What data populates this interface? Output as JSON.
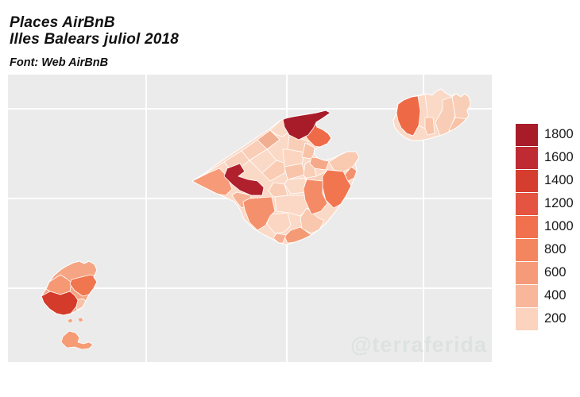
{
  "header": {
    "title_line1": "Places AirBnB",
    "title_line2": "Illes Balears juliol 2018",
    "source": "Font: Web AirBnB"
  },
  "watermark": "@terraferida",
  "colors": {
    "background": "#ffffff",
    "panel": "#ebebeb",
    "gridline": "#ffffff",
    "region_border": "#ffffff",
    "title_text": "#111111",
    "legend_text": "#1a1a1a",
    "watermark_text": "#dce2df"
  },
  "chart_data": {
    "type": "choropleth",
    "title": "Places AirBnB - Illes Balears juliol 2018",
    "source_label": "Font: Web AirBnB",
    "islands": [
      "Mallorca",
      "Menorca",
      "Eivissa",
      "Formentera"
    ],
    "legend": {
      "position": "right",
      "values": [
        1800,
        1600,
        1400,
        1200,
        1000,
        800,
        600,
        400,
        200
      ],
      "colors": [
        "#a81c29",
        "#c02a33",
        "#d53e2e",
        "#e55440",
        "#f1704d",
        "#f4865f",
        "#f69b7a",
        "#f8b69b",
        "#fbd3bf"
      ]
    },
    "regions": {
      "mallorca_base": {
        "island": "Mallorca",
        "approx_value": 150,
        "color": "#fbd9c7"
      },
      "m_andratx": {
        "island": "Mallorca",
        "approx_value": 600,
        "color": "#f69a77"
      },
      "m_nw_coast_1": {
        "island": "Mallorca",
        "approx_value": 150,
        "color": "#fbd8c5"
      },
      "m_nw_coast_2": {
        "island": "Mallorca",
        "approx_value": 250,
        "color": "#f9d0bb"
      },
      "m_nw_coast_3": {
        "island": "Mallorca",
        "approx_value": 250,
        "color": "#f9cdb6"
      },
      "m_soller": {
        "island": "Mallorca",
        "approx_value": 450,
        "color": "#f2ae90"
      },
      "m_escorca": {
        "island": "Mallorca",
        "approx_value": 150,
        "color": "#fbd9c7"
      },
      "m_pollenca": {
        "island": "Mallorca",
        "approx_value": 1750,
        "color": "#a81c29"
      },
      "m_alcudia": {
        "island": "Mallorca",
        "approx_value": 1050,
        "color": "#ef6b48"
      },
      "m_sa_pobla": {
        "island": "Mallorca",
        "approx_value": 250,
        "color": "#f9ceb6"
      },
      "m_muro": {
        "island": "Mallorca",
        "approx_value": 350,
        "color": "#f8c2a6"
      },
      "m_santa_margalida": {
        "island": "Mallorca",
        "approx_value": 500,
        "color": "#f6a988"
      },
      "m_arta": {
        "island": "Mallorca",
        "approx_value": 300,
        "color": "#f9c9b0"
      },
      "m_capdepera": {
        "island": "Mallorca",
        "approx_value": 600,
        "color": "#f4916d"
      },
      "m_east_coast": {
        "island": "Mallorca",
        "approx_value": 950,
        "color": "#f1764f"
      },
      "m_manacor": {
        "island": "Mallorca",
        "approx_value": 800,
        "color": "#f58a66"
      },
      "m_felanitx": {
        "island": "Mallorca",
        "approx_value": 300,
        "color": "#f9c7ad"
      },
      "m_santanyi": {
        "island": "Mallorca",
        "approx_value": 550,
        "color": "#f49a75"
      },
      "m_ses_salines": {
        "island": "Mallorca",
        "approx_value": 450,
        "color": "#f7b093"
      },
      "m_campos": {
        "island": "Mallorca",
        "approx_value": 200,
        "color": "#fbd6c2"
      },
      "m_llucmajor": {
        "island": "Mallorca",
        "approx_value": 650,
        "color": "#f5906c"
      },
      "m_palma": {
        "island": "Mallorca",
        "approx_value": 400,
        "color": "#f7b295"
      },
      "m_calvia": {
        "island": "Mallorca",
        "approx_value": 1650,
        "color": "#b0202d"
      },
      "m_center_1": {
        "island": "Mallorca",
        "approx_value": 150,
        "color": "#fbd9c7"
      },
      "m_center_2": {
        "island": "Mallorca",
        "approx_value": 250,
        "color": "#f9ccb3"
      },
      "m_inca": {
        "island": "Mallorca",
        "approx_value": 200,
        "color": "#fbd5c0"
      },
      "m_center_3": {
        "island": "Mallorca",
        "approx_value": 300,
        "color": "#f8c5aa"
      },
      "m_center_4": {
        "island": "Mallorca",
        "approx_value": 250,
        "color": "#f9ceb6"
      },
      "m_plain_1": {
        "island": "Mallorca",
        "approx_value": 150,
        "color": "#fbd9c7"
      },
      "m_plain_2": {
        "island": "Mallorca",
        "approx_value": 250,
        "color": "#f9cdb5"
      },
      "m_petra": {
        "island": "Mallorca",
        "approx_value": 250,
        "color": "#f9ceb6"
      },
      "m_south_mid": {
        "island": "Mallorca",
        "approx_value": 200,
        "color": "#fbd8c5"
      },
      "me_ciutadella": {
        "island": "Menorca",
        "approx_value": 1000,
        "color": "#ee6946"
      },
      "me_ferreries": {
        "island": "Menorca",
        "approx_value": 200,
        "color": "#fbd7c4"
      },
      "me_es_migjorn": {
        "island": "Menorca",
        "approx_value": 300,
        "color": "#f8c3a8"
      },
      "me_es_mercadal": {
        "island": "Menorca",
        "approx_value": 150,
        "color": "#fbd9c7"
      },
      "me_alaior": {
        "island": "Menorca",
        "approx_value": 250,
        "color": "#f9cdb5"
      },
      "me_mao": {
        "island": "Menorca",
        "approx_value": 250,
        "color": "#f9ceb6"
      },
      "me_sant_lluis": {
        "island": "Menorca",
        "approx_value": 350,
        "color": "#f8c2a6"
      },
      "e_sant_joan": {
        "island": "Eivissa",
        "approx_value": 400,
        "color": "#f5a583"
      },
      "e_sant_antoni": {
        "island": "Eivissa",
        "approx_value": 600,
        "color": "#f59873"
      },
      "e_santa_eularia": {
        "island": "Eivissa",
        "approx_value": 950,
        "color": "#f0764f"
      },
      "e_sant_josep": {
        "island": "Eivissa",
        "approx_value": 1350,
        "color": "#d53b2a"
      },
      "e_eivissa_town": {
        "island": "Eivissa",
        "approx_value": 350,
        "color": "#f8c2a6"
      },
      "e_islet_1": {
        "island": "Eivissa",
        "approx_value": 400,
        "color": "#f5a583"
      },
      "e_islet_2": {
        "island": "Eivissa",
        "approx_value": 400,
        "color": "#f5a583"
      },
      "formentera": {
        "island": "Formentera",
        "approx_value": 550,
        "color": "#f59c74"
      }
    }
  }
}
